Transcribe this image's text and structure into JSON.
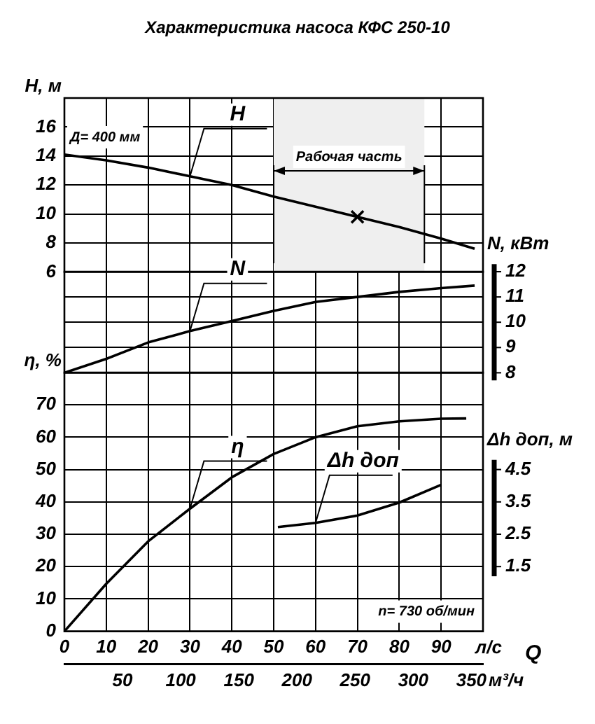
{
  "chart_data": [
    {
      "type": "line",
      "title": "Характеристика насоса КФС 250-10",
      "ylabel": "H, м",
      "xlim": [
        0,
        100
      ],
      "xticks": [
        0,
        10,
        20,
        30,
        40,
        50,
        60,
        70,
        80,
        90
      ],
      "ylim": [
        6,
        18
      ],
      "yticks": [
        6,
        8,
        10,
        12,
        14,
        16
      ],
      "tick_labels": "y",
      "grid": true,
      "legend": false,
      "marker": "none",
      "line_style": "solid",
      "bands": [
        {
          "axis": "x",
          "from": 50,
          "to": 86,
          "label": "Рабочая часть",
          "color": "#efefef"
        }
      ],
      "annotations": [
        "Д= 400 мм"
      ],
      "series": [
        {
          "name": "H",
          "color": "#000000",
          "x": [
            0,
            10,
            20,
            30,
            40,
            50,
            60,
            70,
            80,
            90,
            98
          ],
          "values": [
            14.1,
            13.7,
            13.2,
            12.6,
            12.0,
            11.2,
            10.5,
            9.8,
            9.1,
            8.3,
            7.6
          ]
        },
        {
          "type": "scatter",
          "marker": "cross",
          "color": "#000000",
          "x": [
            70
          ],
          "values": [
            9.8
          ]
        }
      ]
    },
    {
      "type": "line",
      "y2label": "N, кВт",
      "xlim": [
        0,
        100
      ],
      "xticks": [
        0,
        10,
        20,
        30,
        40,
        50,
        60,
        70,
        80,
        90
      ],
      "y2lim": [
        8,
        12
      ],
      "y2ticks": [
        8,
        9,
        10,
        11,
        12
      ],
      "tick_labels": "y",
      "grid": true,
      "legend": false,
      "marker": "none",
      "line_style": "solid",
      "series": [
        {
          "name": "N",
          "color": "#000000",
          "axis": "y2",
          "x": [
            0,
            10,
            20,
            30,
            40,
            50,
            60,
            70,
            80,
            90,
            98
          ],
          "values": [
            8.0,
            8.55,
            9.2,
            9.65,
            10.05,
            10.45,
            10.8,
            11.0,
            11.2,
            11.35,
            11.45
          ]
        }
      ]
    },
    {
      "type": "line",
      "ylabel": "η, %",
      "y2label": "Δh доп, м",
      "xlabel": "л/с",
      "x2label": "м³/ч",
      "xlim": [
        0,
        100
      ],
      "xticks": [
        0,
        10,
        20,
        30,
        40,
        50,
        60,
        70,
        80,
        90
      ],
      "x2lim": [
        0,
        360
      ],
      "x2ticks": [
        50,
        100,
        150,
        200,
        250,
        300,
        350
      ],
      "ylim": [
        0,
        80
      ],
      "yticks": [
        0,
        10,
        20,
        30,
        40,
        50,
        60,
        70
      ],
      "y2lim": [
        -0.5,
        7.5
      ],
      "y2ticks": [
        1.5,
        2.5,
        3.5,
        4.5
      ],
      "grid": true,
      "legend": false,
      "marker": "none",
      "line_style": "solid",
      "annotations": [
        "n= 730 об/мин",
        "Q"
      ],
      "series": [
        {
          "name": "η",
          "color": "#000000",
          "x": [
            0,
            10,
            20,
            30,
            40,
            50,
            60,
            70,
            80,
            90,
            96
          ],
          "values": [
            0,
            14.7,
            27.8,
            37.9,
            47.6,
            54.8,
            60,
            63.4,
            64.9,
            65.7,
            65.8
          ]
        },
        {
          "name": "Δh доп",
          "color": "#000000",
          "axis": "y2",
          "x": [
            51,
            60,
            70,
            80,
            90
          ],
          "values": [
            2.72,
            2.85,
            3.08,
            3.48,
            4.03
          ]
        }
      ]
    }
  ]
}
